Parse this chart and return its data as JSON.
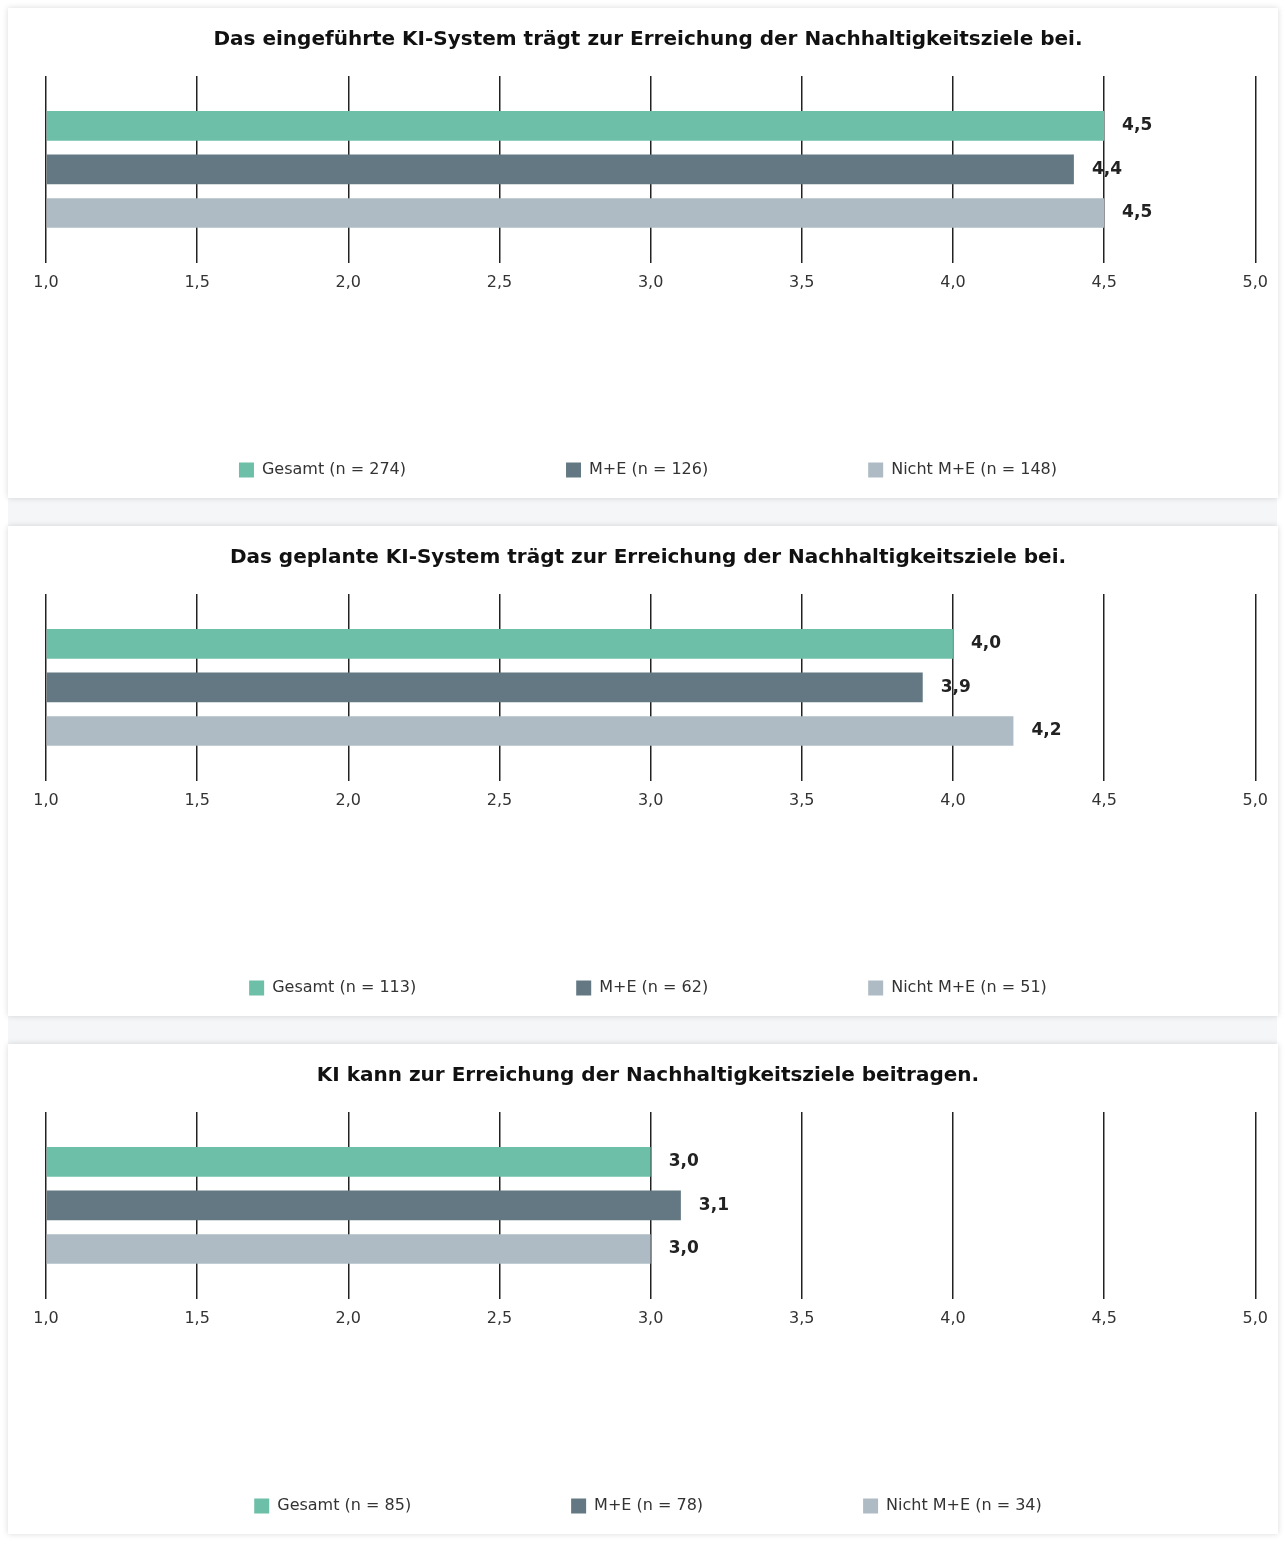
{
  "chart_data": [
    {
      "type": "bar",
      "orientation": "horizontal",
      "title": "Das eingeführte KI-System trägt zur Erreichung der Nachhaltigkeitsziele bei.",
      "categories": [
        null
      ],
      "series": [
        {
          "name": "Gesamt (n = 274)",
          "color": "#6dbfa8",
          "values": [
            4.5
          ],
          "value_labels": [
            "4,5"
          ]
        },
        {
          "name": "M+E (n = 126)",
          "color": "#637882",
          "values": [
            4.4
          ],
          "value_labels": [
            "4,4"
          ]
        },
        {
          "name": "Nicht M+E (n = 148)",
          "color": "#aebbc4",
          "values": [
            4.5
          ],
          "value_labels": [
            "4,5"
          ]
        }
      ],
      "xlim": [
        1,
        5
      ],
      "xticks": [
        {
          "value": 1,
          "label": "1,0"
        },
        {
          "value": 1.5,
          "label": "1,5"
        },
        {
          "value": 2,
          "label": "2,0"
        },
        {
          "value": 2.5,
          "label": "2,5"
        },
        {
          "value": 3,
          "label": "3,0"
        },
        {
          "value": 3.5,
          "label": "3,5"
        },
        {
          "value": 4,
          "label": "4,0"
        },
        {
          "value": 4.5,
          "label": "4,5"
        },
        {
          "value": 5,
          "label": "5,0"
        }
      ],
      "grid": "x",
      "legend": "bottom"
    },
    {
      "type": "bar",
      "orientation": "horizontal",
      "title": "Das geplante KI-System trägt zur Erreichung der Nachhaltigkeitsziele bei.",
      "categories": [
        null
      ],
      "series": [
        {
          "name": "Gesamt (n = 113)",
          "color": "#6dbfa8",
          "values": [
            4.0
          ],
          "value_labels": [
            "4,0"
          ]
        },
        {
          "name": "M+E (n = 62)",
          "color": "#637882",
          "values": [
            3.9
          ],
          "value_labels": [
            "3,9"
          ]
        },
        {
          "name": "Nicht M+E (n = 51)",
          "color": "#aebbc4",
          "values": [
            4.2
          ],
          "value_labels": [
            "4,2"
          ]
        }
      ],
      "xlim": [
        1,
        5
      ],
      "xticks": [
        {
          "value": 1,
          "label": "1,0"
        },
        {
          "value": 1.5,
          "label": "1,5"
        },
        {
          "value": 2,
          "label": "2,0"
        },
        {
          "value": 2.5,
          "label": "2,5"
        },
        {
          "value": 3,
          "label": "3,0"
        },
        {
          "value": 3.5,
          "label": "3,5"
        },
        {
          "value": 4,
          "label": "4,0"
        },
        {
          "value": 4.5,
          "label": "4,5"
        },
        {
          "value": 5,
          "label": "5,0"
        }
      ],
      "grid": "x",
      "legend": "bottom"
    },
    {
      "type": "bar",
      "orientation": "horizontal",
      "title": "KI kann zur Erreichung der Nachhaltigkeitsziele beitragen.",
      "categories": [
        null
      ],
      "series": [
        {
          "name": "Gesamt (n = 85)",
          "color": "#6dbfa8",
          "values": [
            3.0
          ],
          "value_labels": [
            "3,0"
          ]
        },
        {
          "name": "M+E (n = 78)",
          "color": "#637882",
          "values": [
            3.1
          ],
          "value_labels": [
            "3,1"
          ]
        },
        {
          "name": "Nicht M+E (n = 34)",
          "color": "#aebbc4",
          "values": [
            3.0
          ],
          "value_labels": [
            "3,0"
          ]
        }
      ],
      "xlim": [
        1,
        5
      ],
      "xticks": [
        {
          "value": 1,
          "label": "1,0"
        },
        {
          "value": 1.5,
          "label": "1,5"
        },
        {
          "value": 2,
          "label": "2,0"
        },
        {
          "value": 2.5,
          "label": "2,5"
        },
        {
          "value": 3,
          "label": "3,0"
        },
        {
          "value": 3.5,
          "label": "3,5"
        },
        {
          "value": 4,
          "label": "4,0"
        },
        {
          "value": 4.5,
          "label": "4,5"
        },
        {
          "value": 5,
          "label": "5,0"
        }
      ],
      "grid": "x",
      "legend": "bottom"
    }
  ]
}
